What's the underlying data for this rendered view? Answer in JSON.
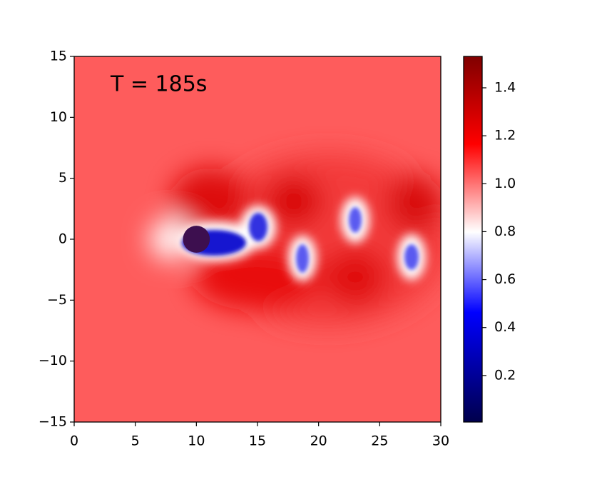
{
  "chart_data": {
    "type": "field",
    "annotation": "T = 185s",
    "colormap": "seismic",
    "xlim": [
      0,
      30
    ],
    "xticks": [
      0,
      5,
      10,
      15,
      20,
      25,
      30
    ],
    "ylim": [
      -15,
      15
    ],
    "yticks": [
      {
        "value": -15,
        "label": "−15"
      },
      {
        "value": -10,
        "label": "−10"
      },
      {
        "value": -5,
        "label": "−5"
      },
      0,
      5,
      10,
      15
    ],
    "clim": [
      0.006,
      1.531
    ],
    "cticks": [
      0.2,
      0.4,
      0.6,
      0.8,
      {
        "value": 1.0,
        "label": "1.0"
      },
      1.2,
      1.4
    ],
    "obstacle": {
      "x": 10,
      "y": 0,
      "r": 1.1,
      "color": "#3d0f4f"
    }
  }
}
